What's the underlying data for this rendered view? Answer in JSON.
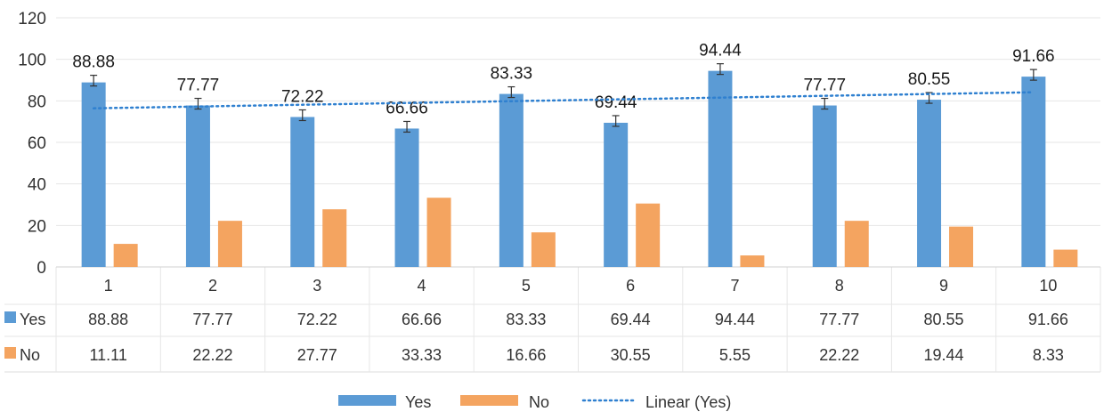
{
  "chart_data": {
    "type": "bar",
    "categories": [
      "1",
      "2",
      "3",
      "4",
      "5",
      "6",
      "7",
      "8",
      "9",
      "10"
    ],
    "series": [
      {
        "name": "Yes",
        "color": "#5b9bd5",
        "values": [
          88.88,
          77.77,
          72.22,
          66.66,
          83.33,
          69.44,
          94.44,
          77.77,
          80.55,
          91.66
        ],
        "value_labels": [
          "88.88",
          "77.77",
          "72.22",
          "66.66",
          "83.33",
          "69.44",
          "94.44",
          "77.77",
          "80.55",
          "91.66"
        ],
        "error_bars": true
      },
      {
        "name": "No",
        "color": "#f4a460",
        "values": [
          11.11,
          22.22,
          27.77,
          33.33,
          16.66,
          30.55,
          5.55,
          22.22,
          19.44,
          8.33
        ],
        "value_labels": [
          "11.11",
          "22.22",
          "27.77",
          "33.33",
          "16.66",
          "30.55",
          "5.55",
          "22.22",
          "19.44",
          "8.33"
        ]
      }
    ],
    "trendline": {
      "name": "Linear (Yes)",
      "series": "Yes",
      "type": "linear",
      "color": "#2f80d0"
    },
    "y_ticks": [
      "0",
      "20",
      "40",
      "60",
      "80",
      "100",
      "120"
    ],
    "ylim": [
      0,
      120
    ],
    "grid": true,
    "data_table": true,
    "legend": {
      "position": "bottom",
      "entries": [
        "Yes",
        "No",
        "Linear (Yes)"
      ]
    }
  }
}
